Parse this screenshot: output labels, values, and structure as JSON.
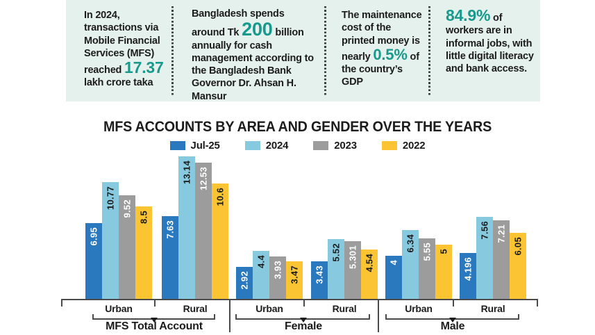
{
  "colors": {
    "accent_teal": "#18998D",
    "panel_background": "#E5F1EC",
    "text": "#1C1C1C",
    "axis": "#4A4A4A",
    "series_jul25": "#2A79BE",
    "series_2024": "#87C9DF",
    "series_2023": "#9C9C9C",
    "series_2022": "#FAC433"
  },
  "stats": [
    {
      "pre": "In 2024, transactions via Mobile Financial Services (MFS) reached ",
      "highlight": "17.37",
      "post": " lakh crore taka"
    },
    {
      "pre": "Bangladesh spends around Tk ",
      "highlight": "200",
      "post": " billion annually for cash management according to the Bangladesh Bank Governor Dr. Ahsan H. Mansur"
    },
    {
      "pre": "The maintenance cost of the printed money is nearly ",
      "highlight": "0.5%",
      "post": " of the country’s GDP"
    },
    {
      "pre": "",
      "highlight": "84.9%",
      "post": " of workers are in informal jobs, with little digital literacy and bank access."
    }
  ],
  "chart_data": {
    "type": "bar",
    "title": "MFS ACCOUNTS BY AREA AND GENDER OVER THE YEARS",
    "legend_position": "top",
    "value_labels": "rotated vertical, inside bar top",
    "ylim": [
      0,
      13.5
    ],
    "series": [
      {
        "name": "Jul-25",
        "color": "#2A79BE",
        "label_color": "#FFFFFF"
      },
      {
        "name": "2024",
        "color": "#87C9DF",
        "label_color": "#1C1C1C"
      },
      {
        "name": "2023",
        "color": "#9C9C9C",
        "label_color": "#FFFFFF"
      },
      {
        "name": "2022",
        "color": "#FAC433",
        "label_color": "#1C1C1C"
      }
    ],
    "groups": [
      {
        "label": "MFS Total Account",
        "subgroups": [
          {
            "label": "Urban",
            "values": [
              6.95,
              10.77,
              9.52,
              8.5
            ]
          },
          {
            "label": "Rural",
            "values": [
              7.63,
              13.14,
              12.53,
              10.6
            ]
          }
        ]
      },
      {
        "label": "Female",
        "subgroups": [
          {
            "label": "Urban",
            "values": [
              2.92,
              4.4,
              3.93,
              3.47
            ]
          },
          {
            "label": "Rural",
            "values": [
              3.43,
              5.52,
              5.301,
              4.54
            ]
          }
        ]
      },
      {
        "label": "Male",
        "subgroups": [
          {
            "label": "Urban",
            "values": [
              4,
              6.34,
              5.55,
              5
            ]
          },
          {
            "label": "Rural",
            "values": [
              4.196,
              7.56,
              7.21,
              6.05
            ]
          }
        ]
      }
    ]
  }
}
